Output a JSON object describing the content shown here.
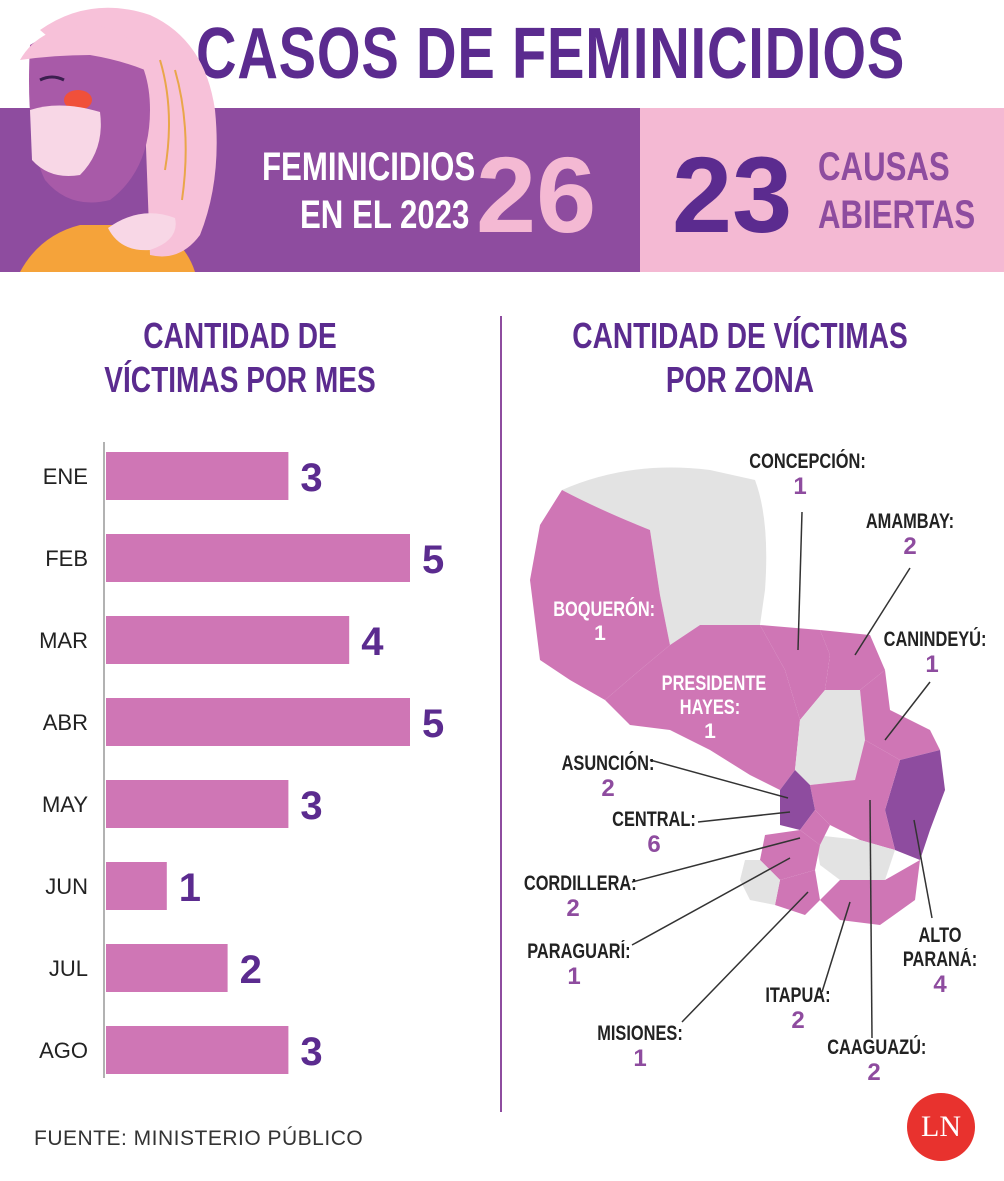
{
  "header": {
    "title": "CASOS DE FEMINICIDIOS",
    "kpi_left": {
      "label_line1": "FEMINICIDIOS",
      "label_line2": "EN EL 2023",
      "value": "26"
    },
    "kpi_right": {
      "value": "23",
      "label_line1": "CAUSAS",
      "label_line2": "ABIERTAS"
    }
  },
  "monthly": {
    "title_line1": "CANTIDAD DE",
    "title_line2": "VÍCTIMAS POR MES"
  },
  "zones": {
    "title_line1": "CANTIDAD DE VÍCTIMAS",
    "title_line2": "POR ZONA",
    "items": [
      {
        "name": "CONCEPCIÓN:",
        "value": "1"
      },
      {
        "name": "AMAMBAY:",
        "value": "2"
      },
      {
        "name": "CANINDEYÚ:",
        "value": "1"
      },
      {
        "name": "BOQUERÓN:",
        "value": "1"
      },
      {
        "name": "PRESIDENTE",
        "name2": "HAYES:",
        "value": "1"
      },
      {
        "name": "ASUNCIÓN:",
        "value": "2"
      },
      {
        "name": "CENTRAL:",
        "value": "6"
      },
      {
        "name": "CORDILLERA:",
        "value": "2"
      },
      {
        "name": "PARAGUARÍ:",
        "value": "1"
      },
      {
        "name": "MISIONES:",
        "value": "1"
      },
      {
        "name": "ITAPUA:",
        "value": "2"
      },
      {
        "name": "CAAGUAZÚ:",
        "value": "2"
      },
      {
        "name": "ALTO",
        "name2": "PARANÁ:",
        "value": "4"
      }
    ]
  },
  "footer": {
    "source": "FUENTE: MINISTERIO PÚBLICO",
    "logo_text": "LN"
  },
  "colors": {
    "purple_dark": "#5b2b8f",
    "purple_mid": "#8e4c9f",
    "pink_bar": "#cf76b5",
    "pink_light": "#f4b9d3",
    "gray_map": "#e3e3e3"
  },
  "chart_data": [
    {
      "type": "bar",
      "orientation": "horizontal",
      "title": "CANTIDAD DE VÍCTIMAS POR MES",
      "categories": [
        "ENE",
        "FEB",
        "MAR",
        "ABR",
        "MAY",
        "JUN",
        "JUL",
        "AGO"
      ],
      "values": [
        3,
        5,
        4,
        5,
        3,
        1,
        2,
        3
      ],
      "xlim": [
        0,
        5
      ],
      "grid": false,
      "data_labels": true
    }
  ]
}
